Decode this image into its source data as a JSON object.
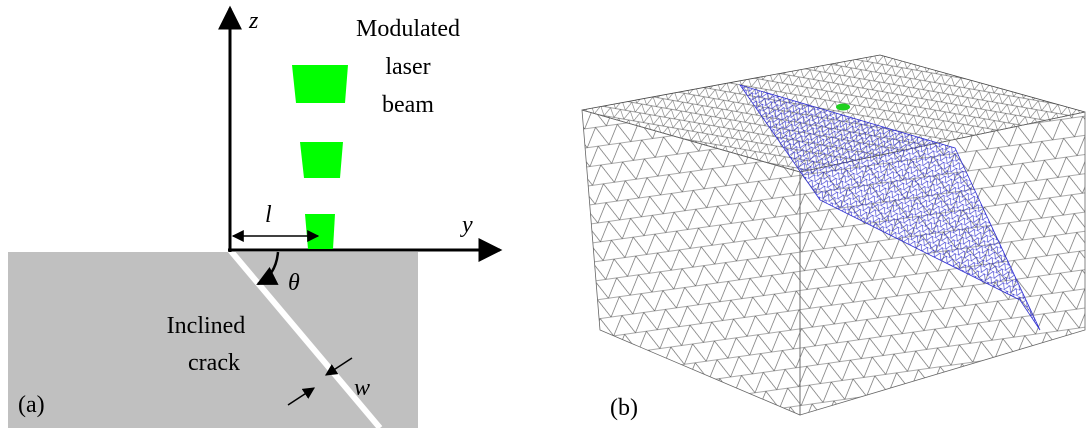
{
  "panel_a": {
    "label": "(a)",
    "z_axis": "z",
    "y_axis": "y",
    "beam_label": [
      "Modulated",
      "laser",
      "beam"
    ],
    "distance": "l",
    "angle": "θ",
    "crack_label": [
      "Inclined",
      "crack"
    ],
    "width": "w"
  },
  "panel_b": {
    "label": "(b)"
  }
}
